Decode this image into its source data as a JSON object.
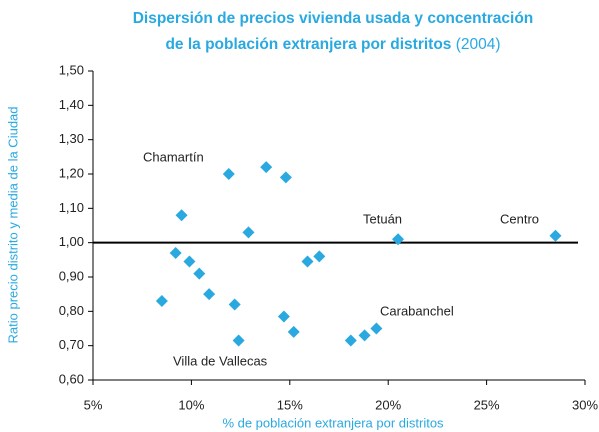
{
  "chart_data": {
    "type": "scatter",
    "title": [
      "Dispersión de precios vivienda usada y concentración",
      "de la población extranjera por distritos",
      "(2004)"
    ],
    "x_label": "% de población extranjera por distritos",
    "y_label": "Ratio precio distrito y media de la Ciudad",
    "color": "#29a9e0",
    "x": [
      13.8,
      11.9,
      14.8,
      9.5,
      12.9,
      20.5,
      28.5,
      9.2,
      16.5,
      15.9,
      9.9,
      10.4,
      10.9,
      8.5,
      12.2,
      14.7,
      15.2,
      12.4,
      18.1,
      18.8,
      19.4
    ],
    "values": [
      1.22,
      1.2,
      1.19,
      1.08,
      1.03,
      1.01,
      1.02,
      0.97,
      0.96,
      0.945,
      0.945,
      0.91,
      0.85,
      0.83,
      0.82,
      0.785,
      0.74,
      0.715,
      0.715,
      0.73,
      0.75
    ],
    "xlim": [
      5,
      30
    ],
    "xticks": [
      {
        "value": 5,
        "label": "5%"
      },
      {
        "value": 10,
        "label": "10%"
      },
      {
        "value": 15,
        "label": "15%"
      },
      {
        "value": 20,
        "label": "20%"
      },
      {
        "value": 25,
        "label": "25%"
      },
      {
        "value": 30,
        "label": "30%"
      }
    ],
    "ylim": [
      0.6,
      1.5
    ],
    "yticks": [
      {
        "value": 0.6,
        "label": "0,60"
      },
      {
        "value": 0.7,
        "label": "0,70"
      },
      {
        "value": 0.8,
        "label": "0,80"
      },
      {
        "value": 0.9,
        "label": "0,90"
      },
      {
        "value": 1.0,
        "label": "1,00"
      },
      {
        "value": 1.1,
        "label": "1,10"
      },
      {
        "value": 1.2,
        "label": "1,20"
      },
      {
        "value": 1.3,
        "label": "1,30"
      },
      {
        "value": 1.4,
        "label": "1,40"
      },
      {
        "value": 1.5,
        "label": "1,50"
      }
    ],
    "reference_line": 1.0,
    "annotations": [
      "Chamartín",
      "Tetuán",
      "Centro",
      "Carabanchel",
      "Villa de Vallecas"
    ]
  }
}
